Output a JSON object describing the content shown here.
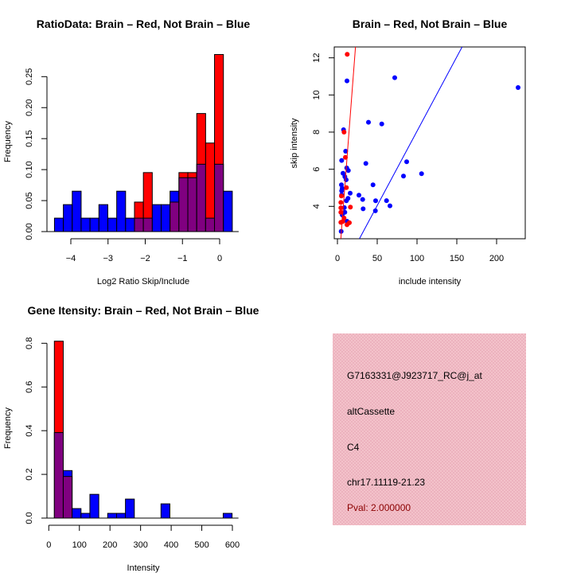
{
  "colors": {
    "red": "#ff0000",
    "blue": "#0000ff",
    "overlap": "#800080",
    "panel": "#f4c4cc",
    "pval": "#8b0000"
  },
  "chart_data": [
    {
      "type": "bar",
      "id": "ratio-histogram",
      "title": "RatioData: Brain – Red, Not Brain – Blue",
      "xlabel": "Log2 Ratio Skip/Include",
      "ylabel": "Frequency",
      "xticks": [
        -4,
        -3,
        -2,
        -1,
        0
      ],
      "yticks": [
        "0.00",
        "0.05",
        "0.10",
        "0.15",
        "0.20",
        "0.25"
      ],
      "bin_start": -4.44,
      "bin_width": 0.239,
      "series": [
        {
          "name": "Not Brain",
          "color": "blue",
          "values": [
            0.0217,
            0.0435,
            0.0652,
            0.0217,
            0.0217,
            0.0435,
            0.0217,
            0.0652,
            0.0217,
            0.0217,
            0.0217,
            0.0435,
            0.0435,
            0.0652,
            0.087,
            0.087,
            0.1087,
            0.0217,
            0.1087,
            0.0652
          ]
        },
        {
          "name": "Brain",
          "color": "red",
          "values": [
            0,
            0,
            0,
            0,
            0,
            0,
            0,
            0,
            0,
            0.0476,
            0.0952,
            0,
            0,
            0.0476,
            0.0952,
            0.0952,
            0.1905,
            0.1429,
            0.2857,
            0
          ]
        }
      ]
    },
    {
      "type": "scatter",
      "id": "intensity-scatter",
      "title": "Brain – Red, Not Brain – Blue",
      "xlabel": "include intensity",
      "ylabel": "skip intensity",
      "xticks": [
        0,
        50,
        100,
        150,
        200
      ],
      "yticks": [
        4,
        6,
        8,
        10,
        12
      ],
      "xlim": [
        -5,
        236
      ],
      "ylim": [
        2.26,
        12.59
      ],
      "series": [
        {
          "name": "Not Brain",
          "color": "blue",
          "points": [
            [
              12,
              10.76
            ],
            [
              72,
              10.93
            ],
            [
              227,
              10.4
            ],
            [
              39,
              8.53
            ],
            [
              55.7,
              8.44
            ],
            [
              7.7,
              8.13
            ],
            [
              10.3,
              6.97
            ],
            [
              5.3,
              6.47
            ],
            [
              35.7,
              6.31
            ],
            [
              87,
              6.4
            ],
            [
              83,
              5.63
            ],
            [
              105.7,
              5.76
            ],
            [
              11.7,
              6.07
            ],
            [
              13.7,
              5.93
            ],
            [
              7,
              5.78
            ],
            [
              9.3,
              5.6
            ],
            [
              11,
              5.43
            ],
            [
              44.7,
              5.16
            ],
            [
              5,
              5.16
            ],
            [
              6,
              4.97
            ],
            [
              16,
              4.71
            ],
            [
              27,
              4.6
            ],
            [
              31.7,
              4.37
            ],
            [
              48,
              4.3
            ],
            [
              61.7,
              4.31
            ],
            [
              13.3,
              4.43
            ],
            [
              11.3,
              4.3
            ],
            [
              5.3,
              4.62
            ],
            [
              5.3,
              4.84
            ],
            [
              32.3,
              3.87
            ],
            [
              66,
              4.03
            ],
            [
              47.7,
              3.76
            ],
            [
              8.7,
              3.93
            ],
            [
              6,
              3.54
            ],
            [
              9.3,
              3.68
            ],
            [
              12,
              3.2
            ],
            [
              4.7,
              2.65
            ]
          ],
          "fit_line": [
            [
              27.7,
              2.26
            ],
            [
              156.7,
              12.59
            ]
          ]
        },
        {
          "name": "Brain",
          "color": "red",
          "points": [
            [
              12.3,
              12.19
            ],
            [
              8.3,
              8.0
            ],
            [
              10,
              6.64
            ],
            [
              11.3,
              5.01
            ],
            [
              16.3,
              3.96
            ],
            [
              4.3,
              4.21
            ],
            [
              4.3,
              3.92
            ],
            [
              4.3,
              3.14
            ],
            [
              8.3,
              3.37
            ],
            [
              15,
              3.12
            ],
            [
              12,
              3.01
            ],
            [
              6.7,
              3.18
            ],
            [
              4.3,
              3.68
            ],
            [
              5,
              4.56
            ]
          ],
          "fit_line": [
            [
              4.3,
              2.26
            ],
            [
              22.7,
              12.59
            ]
          ]
        }
      ]
    },
    {
      "type": "bar",
      "id": "gene-intensity-histogram",
      "title": "Gene Itensity: Brain – Red, Not Brain – Blue",
      "xlabel": "Intensity",
      "ylabel": "Frequency",
      "xticks": [
        0,
        100,
        200,
        300,
        400,
        500,
        600
      ],
      "yticks": [
        "0.0",
        "0.2",
        "0.4",
        "0.6",
        "0.8"
      ],
      "bin_start": 18.2,
      "bin_width": 29.04,
      "series": [
        {
          "name": "Not Brain",
          "color": "blue",
          "values": [
            0.3913,
            0.2174,
            0.0435,
            0.0217,
            0.1087,
            0,
            0.0217,
            0.0217,
            0.087,
            0,
            0,
            0,
            0.0652,
            0,
            0,
            0,
            0,
            0,
            0,
            0.0217
          ]
        },
        {
          "name": "Brain",
          "color": "red",
          "values": [
            0.8095,
            0.1905,
            0,
            0,
            0,
            0,
            0,
            0,
            0,
            0,
            0,
            0,
            0,
            0,
            0,
            0,
            0,
            0,
            0,
            0
          ]
        }
      ]
    }
  ],
  "info_panel": {
    "probe": "G7163331@J923717_RC@j_at",
    "event_type": "altCassette",
    "cluster": "C4",
    "location": "chr17.11119-21.23",
    "pval": "Pval: 2.000000"
  }
}
